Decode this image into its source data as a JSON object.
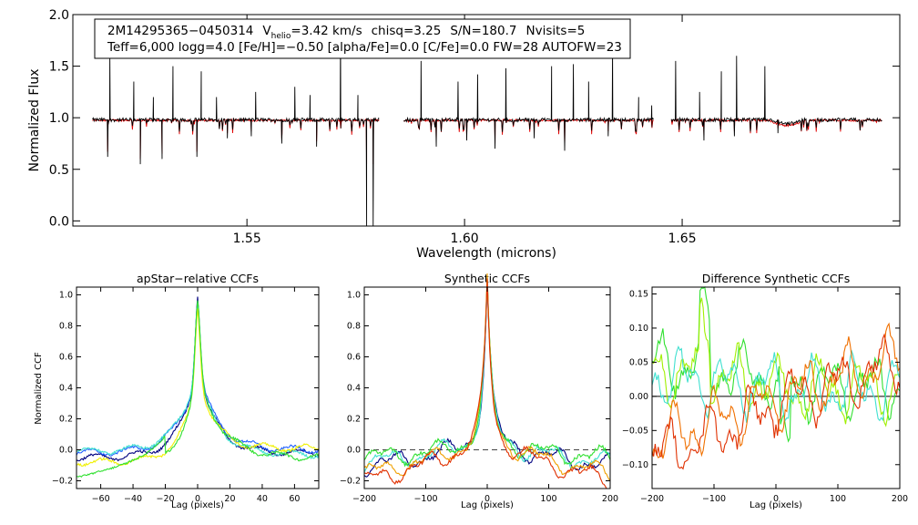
{
  "chart_data": [
    {
      "type": "line",
      "panel": "spectrum",
      "title": "",
      "xlabel": "Wavelength (microns)",
      "ylabel": "Normalized Flux",
      "xlim": [
        1.51,
        1.7
      ],
      "ylim": [
        -0.05,
        2.0
      ],
      "x_ticks": [
        1.55,
        1.6,
        1.65
      ],
      "x_tick_labels": [
        "1.55",
        "1.60",
        "1.65"
      ],
      "y_ticks": [
        0.0,
        0.5,
        1.0,
        1.5,
        2.0
      ],
      "y_tick_labels": [
        "0.0",
        "0.5",
        "1.0",
        "1.5",
        "2.0"
      ],
      "wavelength_chips": [
        [
          1.5145,
          1.5805
        ],
        [
          1.586,
          1.6435
        ],
        [
          1.6475,
          1.696
        ]
      ],
      "info_box": {
        "object_id": "2M14295365−0450314",
        "vhelio_prefix": "V",
        "vhelio_sub": "helio",
        "vhelio_value": "=3.42 km/s",
        "chisq": "chisq=3.25",
        "snr": "S/N=180.7",
        "nvisits": "Nvisits=5",
        "line2": "Teff=6,000 logg=4.0 [Fe/H]=−0.50 [alpha/Fe]=0.0 [C/Fe]=0.0 FW=28 AUTOFW=23"
      },
      "series": [
        {
          "name": "observed",
          "color": "#000000",
          "continuum": 0.98
        },
        {
          "name": "model",
          "color": "#e00000",
          "continuum": 0.98
        }
      ],
      "emission_spikes": [
        {
          "x": 1.5185,
          "y": 1.62
        },
        {
          "x": 1.524,
          "y": 1.35
        },
        {
          "x": 1.5285,
          "y": 1.2
        },
        {
          "x": 1.533,
          "y": 1.5
        },
        {
          "x": 1.5395,
          "y": 1.45
        },
        {
          "x": 1.543,
          "y": 1.2
        },
        {
          "x": 1.552,
          "y": 1.25
        },
        {
          "x": 1.561,
          "y": 1.3
        },
        {
          "x": 1.5645,
          "y": 1.22
        },
        {
          "x": 1.5715,
          "y": 1.85
        },
        {
          "x": 1.5755,
          "y": 1.22
        },
        {
          "x": 1.59,
          "y": 1.55
        },
        {
          "x": 1.5985,
          "y": 1.35
        },
        {
          "x": 1.603,
          "y": 1.42
        },
        {
          "x": 1.6095,
          "y": 1.48
        },
        {
          "x": 1.62,
          "y": 1.5
        },
        {
          "x": 1.625,
          "y": 1.52
        },
        {
          "x": 1.6285,
          "y": 1.35
        },
        {
          "x": 1.634,
          "y": 1.68
        },
        {
          "x": 1.64,
          "y": 1.2
        },
        {
          "x": 1.643,
          "y": 1.12
        },
        {
          "x": 1.6485,
          "y": 1.55
        },
        {
          "x": 1.654,
          "y": 1.25
        },
        {
          "x": 1.659,
          "y": 1.45
        },
        {
          "x": 1.6625,
          "y": 1.6
        },
        {
          "x": 1.669,
          "y": 1.5
        }
      ],
      "absorption_dips": [
        {
          "x": 1.518,
          "y": 0.62
        },
        {
          "x": 1.5255,
          "y": 0.55
        },
        {
          "x": 1.5305,
          "y": 0.6
        },
        {
          "x": 1.5385,
          "y": 0.62
        },
        {
          "x": 1.5455,
          "y": 0.8
        },
        {
          "x": 1.551,
          "y": 0.82
        },
        {
          "x": 1.558,
          "y": 0.75
        },
        {
          "x": 1.566,
          "y": 0.72
        },
        {
          "x": 1.5775,
          "y": -0.05
        },
        {
          "x": 1.579,
          "y": -0.05
        },
        {
          "x": 1.5935,
          "y": 0.72
        },
        {
          "x": 1.6005,
          "y": 0.78
        },
        {
          "x": 1.607,
          "y": 0.7
        },
        {
          "x": 1.616,
          "y": 0.8
        },
        {
          "x": 1.623,
          "y": 0.68
        },
        {
          "x": 1.633,
          "y": 0.82
        },
        {
          "x": 1.655,
          "y": 0.78
        },
        {
          "x": 1.662,
          "y": 0.82
        },
        {
          "x": 1.672,
          "y": 0.85
        }
      ]
    },
    {
      "type": "line",
      "panel": "ccf-apstar",
      "title": "apStar−relative CCFs",
      "xlabel": "Lag (pixels)",
      "ylabel": "Normalized CCF",
      "xlim": [
        -75,
        75
      ],
      "ylim": [
        -0.25,
        1.05
      ],
      "x_ticks": [
        -60,
        -40,
        -20,
        0,
        20,
        40,
        60
      ],
      "x_tick_labels": [
        "−60",
        "−40",
        "−20",
        "0",
        "20",
        "40",
        "60"
      ],
      "y_ticks": [
        -0.2,
        0.0,
        0.2,
        0.4,
        0.6,
        0.8,
        1.0
      ],
      "y_tick_labels": [
        "−0.2",
        "0.0",
        "0.2",
        "0.4",
        "0.6",
        "0.8",
        "1.0"
      ],
      "series": [
        {
          "name": "visit-1",
          "color": "#000080",
          "peak": 1.0,
          "left": -0.05,
          "right": -0.02,
          "width": 11
        },
        {
          "name": "visit-2",
          "color": "#2060ff",
          "peak": 0.97,
          "left": -0.02,
          "right": 0.0,
          "width": 12
        },
        {
          "name": "visit-3",
          "color": "#40e0d0",
          "peak": 0.96,
          "left": -0.01,
          "right": -0.03,
          "width": 12
        },
        {
          "name": "visit-4",
          "color": "#f0f000",
          "peak": 0.93,
          "left": -0.08,
          "right": 0.01,
          "width": 10
        },
        {
          "name": "visit-5",
          "color": "#30e030",
          "peak": 0.95,
          "left": -0.18,
          "right": -0.05,
          "width": 14
        }
      ]
    },
    {
      "type": "line",
      "panel": "ccf-synthetic",
      "title": "Synthetic CCFs",
      "xlabel": "Lag (pixels)",
      "ylabel": "",
      "xlim": [
        -200,
        200
      ],
      "ylim": [
        -0.25,
        1.05
      ],
      "x_ticks": [
        -200,
        -100,
        0,
        100,
        200
      ],
      "x_tick_labels": [
        "−200",
        "−100",
        "0",
        "100",
        "200"
      ],
      "y_ticks": [
        -0.2,
        0.0,
        0.2,
        0.4,
        0.6,
        0.8,
        1.0
      ],
      "y_tick_labels": [
        "−0.2",
        "0.0",
        "0.2",
        "0.4",
        "0.6",
        "0.8",
        "1.0"
      ],
      "reference_line": 0.0,
      "series": [
        {
          "name": "visit-1",
          "color": "#000080",
          "peak": 1.0,
          "edge": -0.1
        },
        {
          "name": "visit-2",
          "color": "#40e0d0",
          "peak": 0.95,
          "edge": -0.08
        },
        {
          "name": "visit-3",
          "color": "#30e030",
          "peak": 0.96,
          "edge": -0.05
        },
        {
          "name": "visit-4",
          "color": "#f0a000",
          "peak": 0.98,
          "edge": -0.15
        },
        {
          "name": "visit-5",
          "color": "#e03000",
          "peak": 0.99,
          "edge": -0.2
        }
      ]
    },
    {
      "type": "line",
      "panel": "ccf-difference",
      "title": "Difference Synthetic CCFs",
      "xlabel": "Lag (pixels)",
      "ylabel": "",
      "xlim": [
        -200,
        200
      ],
      "ylim": [
        -0.135,
        0.16
      ],
      "x_ticks": [
        -200,
        -100,
        0,
        100,
        200
      ],
      "x_tick_labels": [
        "−200",
        "−100",
        "0",
        "100",
        "200"
      ],
      "y_ticks": [
        -0.1,
        -0.05,
        0.0,
        0.05,
        0.1,
        0.15
      ],
      "y_tick_labels": [
        "−0.10",
        "−0.05",
        "0.00",
        "0.05",
        "0.10",
        "0.15"
      ],
      "reference_line": 0.0,
      "series": [
        {
          "name": "visit-1",
          "color": "#30e030",
          "offset": 0.05
        },
        {
          "name": "visit-2",
          "color": "#a0f000",
          "offset": 0.04
        },
        {
          "name": "visit-3",
          "color": "#40e0d0",
          "offset": 0.03
        },
        {
          "name": "visit-4",
          "color": "#f07000",
          "offset": -0.01
        },
        {
          "name": "visit-5",
          "color": "#e03000",
          "offset": -0.03
        }
      ]
    }
  ]
}
